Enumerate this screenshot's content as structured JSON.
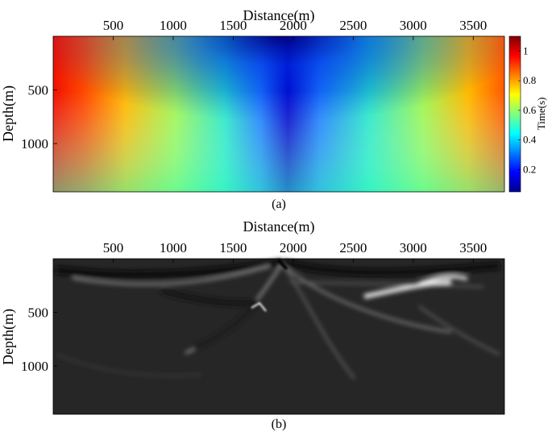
{
  "chart_data": [
    {
      "type": "heatmap",
      "panel_label": "(a)",
      "xlabel": "Distance(m)",
      "ylabel": "Depth(m)",
      "xticks": [
        500,
        1000,
        1500,
        2000,
        2500,
        3000,
        3500
      ],
      "yticks": [
        500,
        1000
      ],
      "xlim": [
        0,
        3760
      ],
      "ylim": [
        0,
        1450
      ],
      "x_axis_position": "top",
      "colorbar": {
        "title": "Time(s)",
        "ticks": [
          0.2,
          0.4,
          0.6,
          0.8,
          1
        ],
        "range": [
          0.05,
          1.1
        ],
        "colormap": "jet"
      },
      "field_description_values": {
        "min_time_location": [
          2000,
          0
        ],
        "min_time": 0.05,
        "max_time": 1.05
      }
    },
    {
      "type": "heatmap",
      "panel_label": "(b)",
      "xlabel": "Distance(m)",
      "ylabel": "Depth(m)",
      "xticks": [
        500,
        1000,
        1500,
        2000,
        2500,
        3000,
        3500
      ],
      "yticks": [
        500,
        1000
      ],
      "xlim": [
        0,
        3760
      ],
      "ylim": [
        0,
        1450
      ],
      "x_axis_position": "top",
      "colormap": "gray"
    }
  ]
}
